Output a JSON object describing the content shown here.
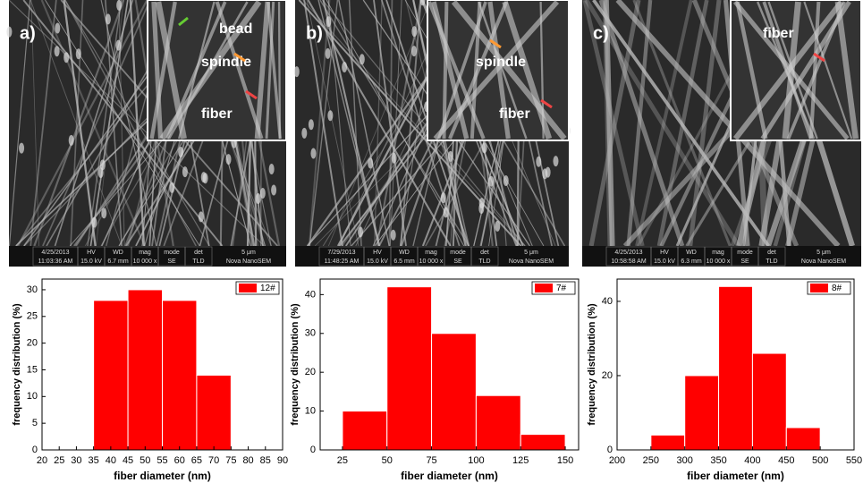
{
  "chart_data": [
    {
      "type": "histogram",
      "bins": [
        35,
        45,
        55,
        65,
        75
      ],
      "values": [
        28,
        30,
        28,
        14
      ],
      "color": "#ff0000",
      "legend": "12#",
      "xlabel": "fiber diameter (nm)",
      "ylabel": "frequency distribution (%)",
      "xlim": [
        20,
        90
      ],
      "xticks": [
        20,
        25,
        30,
        35,
        40,
        45,
        50,
        55,
        60,
        65,
        70,
        75,
        80,
        85,
        90
      ],
      "ylim": [
        0,
        32
      ],
      "yticks": [
        0,
        5,
        10,
        15,
        20,
        25,
        30
      ]
    },
    {
      "type": "histogram",
      "bins": [
        25,
        50,
        75,
        100,
        125,
        150
      ],
      "values": [
        10,
        42,
        30,
        14,
        4
      ],
      "color": "#ff0000",
      "legend": "7#",
      "xlabel": "fiber diameter (nm)",
      "ylabel": "frequency distribution (%)",
      "xlim": [
        12.5,
        157.5
      ],
      "xticks": [
        25,
        50,
        75,
        100,
        125,
        150
      ],
      "ylim": [
        0,
        44
      ],
      "yticks": [
        0,
        10,
        20,
        30,
        40
      ]
    },
    {
      "type": "histogram",
      "bins": [
        250,
        300,
        350,
        400,
        450,
        500
      ],
      "values": [
        4,
        20,
        44,
        26,
        6
      ],
      "color": "#ff0000",
      "legend": "8#",
      "xlabel": "fiber diameter (nm)",
      "ylabel": "frequency distribution (%)",
      "xlim": [
        200,
        550
      ],
      "xticks": [
        200,
        250,
        300,
        350,
        400,
        450,
        500,
        550
      ],
      "ylim": [
        0,
        46
      ],
      "yticks": [
        0,
        20,
        40
      ]
    }
  ],
  "images": [
    {
      "label": "a)",
      "annotations": [
        "bead",
        "spindle",
        "fiber"
      ],
      "info": [
        [
          "4/25/2013",
          "11:03:36 AM"
        ],
        [
          "HV",
          "15.0 kV"
        ],
        [
          "WD",
          "6.7 mm"
        ],
        [
          "mag",
          "10 000 x"
        ],
        [
          "mode",
          "SE"
        ],
        [
          "det",
          "TLD"
        ]
      ],
      "scale": "5 μm",
      "brand": "Nova NanoSEM"
    },
    {
      "label": "b)",
      "annotations": [
        "spindle",
        "fiber"
      ],
      "info": [
        [
          "7/29/2013",
          "11:48:25 AM"
        ],
        [
          "HV",
          "15.0 kV"
        ],
        [
          "WD",
          "6.5 mm"
        ],
        [
          "mag",
          "10 000 x"
        ],
        [
          "mode",
          "SE"
        ],
        [
          "det",
          "TLD"
        ]
      ],
      "scale": "5 μm",
      "brand": "Nova NanoSEM"
    },
    {
      "label": "c)",
      "annotations": [
        "fiber"
      ],
      "info": [
        [
          "4/25/2013",
          "10:58:58 AM"
        ],
        [
          "HV",
          "15.0 kV"
        ],
        [
          "WD",
          "6.3 mm"
        ],
        [
          "mag",
          "10 000 x"
        ],
        [
          "mode",
          "SE"
        ],
        [
          "det",
          "TLD"
        ]
      ],
      "scale": "5 μm",
      "brand": "Nova NanoSEM"
    }
  ]
}
